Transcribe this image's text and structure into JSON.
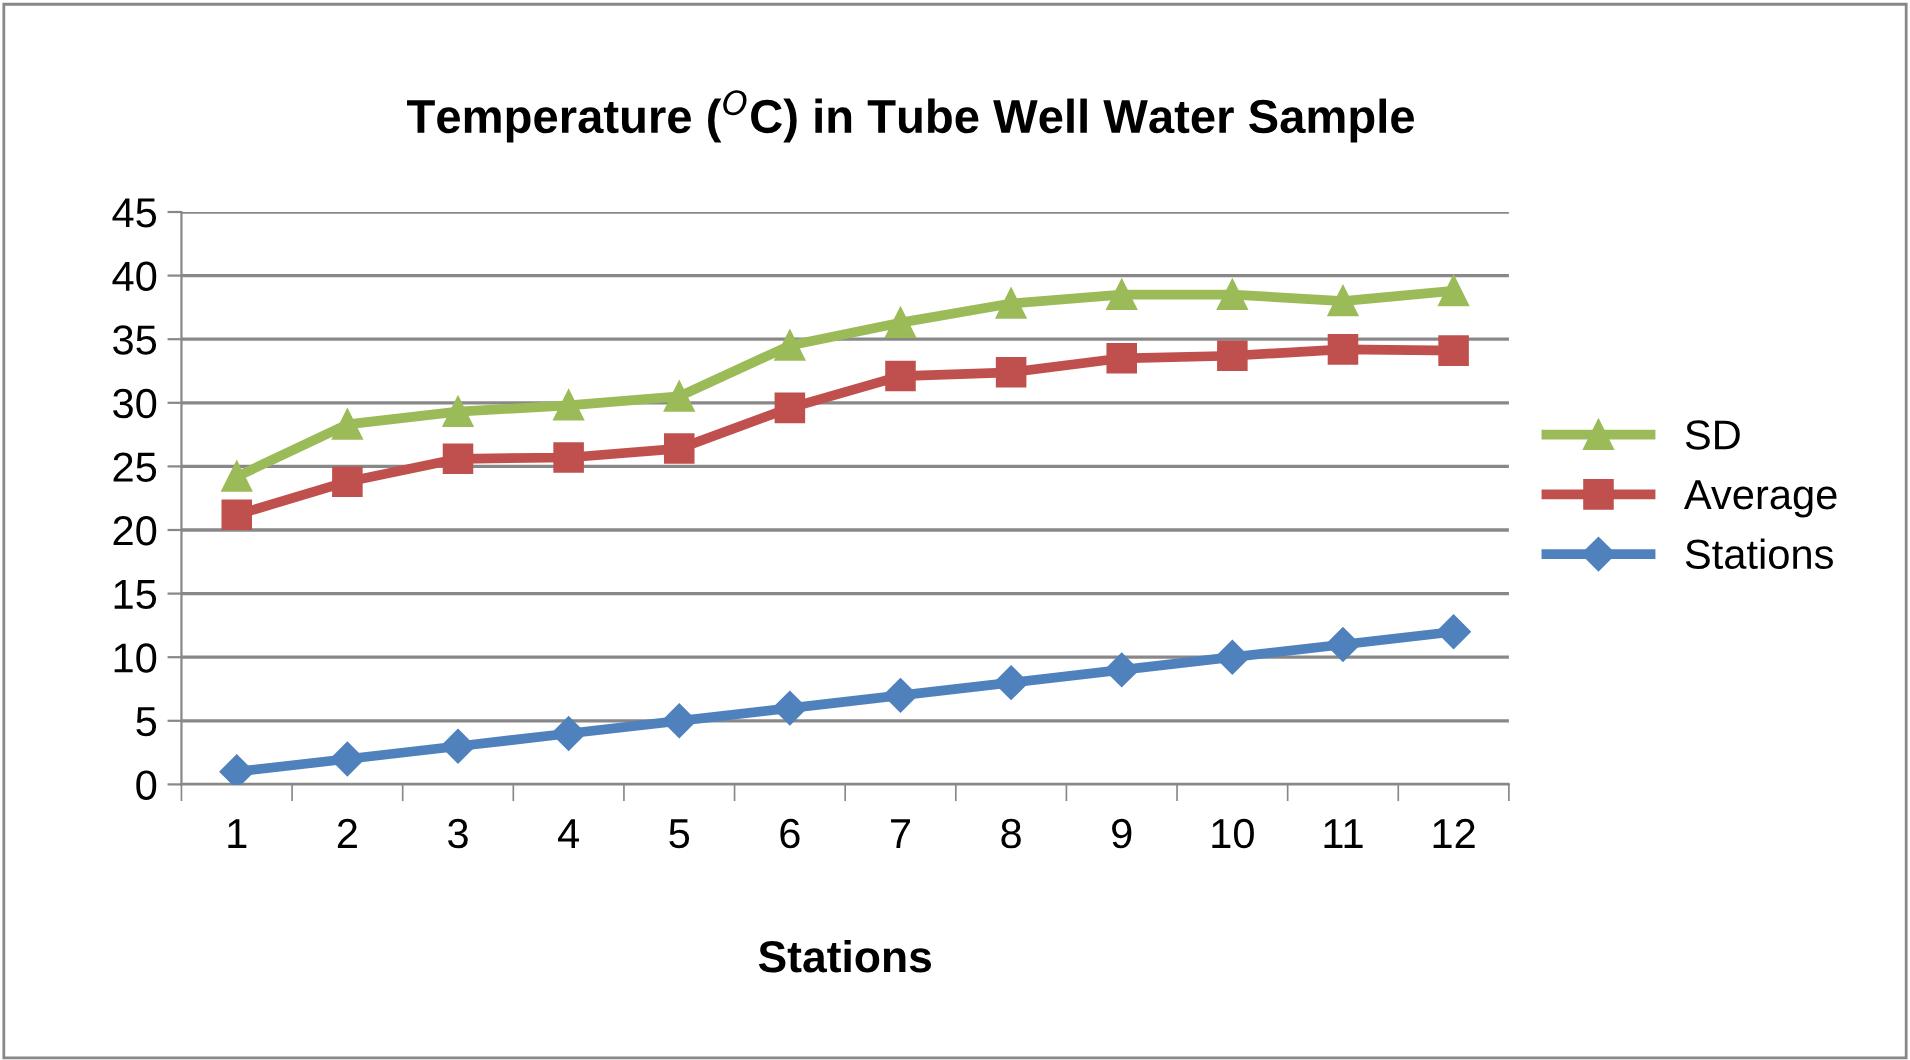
{
  "chart_data": {
    "type": "line",
    "title": "Temperature ($^{O}$C) in Tube Well Water Sample",
    "xlabel": "Stations",
    "categories": [
      "1",
      "2",
      "3",
      "4",
      "5",
      "6",
      "7",
      "8",
      "9",
      "10",
      "11",
      "12"
    ],
    "series": [
      {
        "name": "SD",
        "color": "#9bbb59",
        "marker": "triangle",
        "values": [
          24.2,
          28.3,
          29.3,
          29.8,
          30.5,
          34.5,
          36.3,
          37.8,
          38.5,
          38.5,
          38.0,
          38.8
        ]
      },
      {
        "name": "Average",
        "color": "#c0504d",
        "marker": "square",
        "values": [
          21.2,
          23.8,
          25.6,
          25.7,
          26.4,
          29.6,
          32.1,
          32.4,
          33.5,
          33.7,
          34.2,
          34.1
        ]
      },
      {
        "name": "Stations",
        "color": "#4f81bd",
        "marker": "diamond",
        "values": [
          1,
          2,
          3,
          4,
          5,
          6,
          7,
          8,
          9,
          10,
          11,
          12
        ]
      }
    ],
    "ylim": [
      0,
      45
    ],
    "yticks": [
      0,
      5,
      10,
      15,
      20,
      25,
      30,
      35,
      40,
      45
    ],
    "grid": "y",
    "legend": "right",
    "line_style": "solid"
  }
}
